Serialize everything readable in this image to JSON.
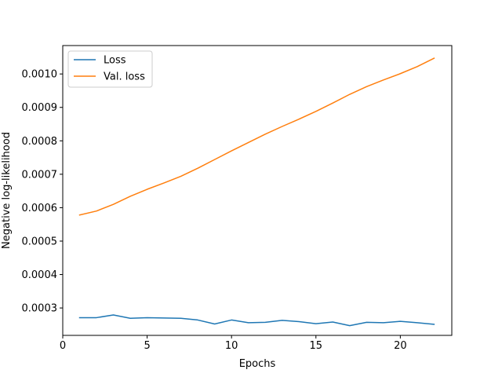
{
  "chart_data": {
    "type": "line",
    "title": "",
    "xlabel": "Epochs",
    "ylabel": "Negative log-likelihood",
    "xlim": [
      0,
      23.05
    ],
    "ylim": [
      0.000218,
      0.001085
    ],
    "xticks": [
      0,
      5,
      10,
      15,
      20
    ],
    "xtick_labels": [
      "0",
      "5",
      "10",
      "15",
      "20"
    ],
    "yticks": [
      0.0003,
      0.0004,
      0.0005,
      0.0006,
      0.0007,
      0.0008,
      0.0009,
      0.001
    ],
    "ytick_labels": [
      "0.0003",
      "0.0004",
      "0.0005",
      "0.0006",
      "0.0007",
      "0.0008",
      "0.0009",
      "0.0010"
    ],
    "grid": false,
    "legend": "top-left",
    "x": [
      1,
      2,
      3,
      4,
      5,
      6,
      7,
      8,
      9,
      10,
      11,
      12,
      13,
      14,
      15,
      16,
      17,
      18,
      19,
      20,
      21,
      22
    ],
    "series": [
      {
        "name": "Loss",
        "color": "#1f77b4",
        "values": [
          0.000271,
          0.000271,
          0.000279,
          0.000269,
          0.000271,
          0.00027,
          0.000269,
          0.000264,
          0.000252,
          0.000264,
          0.000256,
          0.000257,
          0.000263,
          0.000259,
          0.000253,
          0.000258,
          0.000247,
          0.000257,
          0.000256,
          0.00026,
          0.000256,
          0.000251
        ]
      },
      {
        "name": "Val. loss",
        "color": "#ff7f0e",
        "values": [
          0.000578,
          0.00059,
          0.00061,
          0.000634,
          0.000655,
          0.000674,
          0.000694,
          0.000718,
          0.000744,
          0.00077,
          0.000795,
          0.00082,
          0.000843,
          0.000865,
          0.000888,
          0.000913,
          0.000939,
          0.000962,
          0.000982,
          0.001001,
          0.001022,
          0.001047
        ]
      }
    ]
  }
}
